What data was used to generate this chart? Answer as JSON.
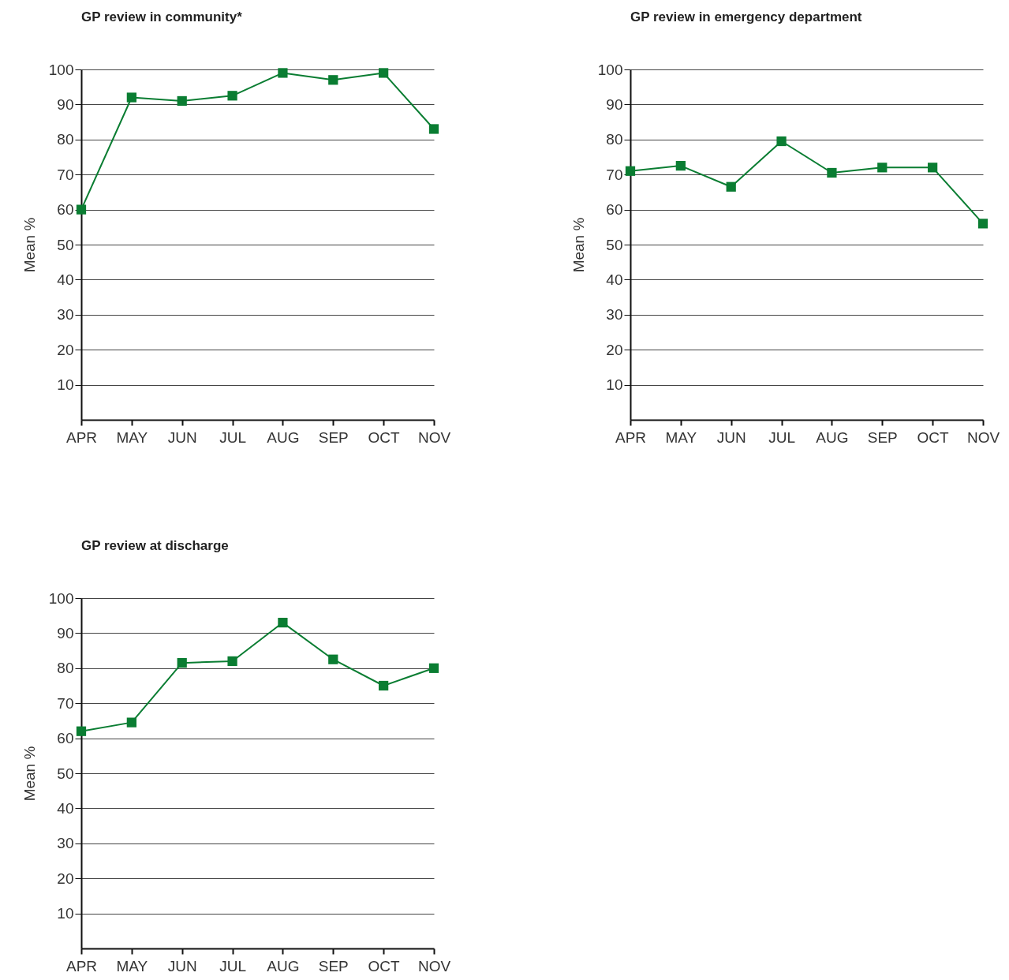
{
  "chart_data": [
    {
      "type": "line",
      "title": "GP review in community*",
      "ylabel": "Mean %",
      "categories": [
        "APR",
        "MAY",
        "JUN",
        "JUL",
        "AUG",
        "SEP",
        "OCT",
        "NOV"
      ],
      "series": [
        {
          "color": "#0a7d32",
          "values": [
            60,
            92,
            91,
            92.5,
            99,
            97,
            99,
            83
          ]
        }
      ],
      "ylim": [
        0,
        100
      ],
      "yticks": [
        10,
        20,
        30,
        40,
        50,
        60,
        70,
        80,
        90,
        100
      ],
      "grid": "y",
      "marker": "square"
    },
    {
      "type": "line",
      "title": "GP review in emergency department",
      "ylabel": "Mean %",
      "categories": [
        "APR",
        "MAY",
        "JUN",
        "JUL",
        "AUG",
        "SEP",
        "OCT",
        "NOV"
      ],
      "series": [
        {
          "color": "#0a7d32",
          "values": [
            71,
            72.5,
            66.5,
            79.5,
            70.5,
            72,
            72,
            56
          ]
        }
      ],
      "ylim": [
        0,
        100
      ],
      "yticks": [
        10,
        20,
        30,
        40,
        50,
        60,
        70,
        80,
        90,
        100
      ],
      "grid": "y",
      "marker": "square"
    },
    {
      "type": "line",
      "title": "GP review at discharge",
      "ylabel": "Mean %",
      "categories": [
        "APR",
        "MAY",
        "JUN",
        "JUL",
        "AUG",
        "SEP",
        "OCT",
        "NOV"
      ],
      "series": [
        {
          "color": "#0a7d32",
          "values": [
            62,
            64.5,
            81.5,
            82,
            93,
            82.5,
            75,
            80
          ]
        }
      ],
      "ylim": [
        0,
        100
      ],
      "yticks": [
        10,
        20,
        30,
        40,
        50,
        60,
        70,
        80,
        90,
        100
      ],
      "grid": "y",
      "marker": "square"
    }
  ]
}
